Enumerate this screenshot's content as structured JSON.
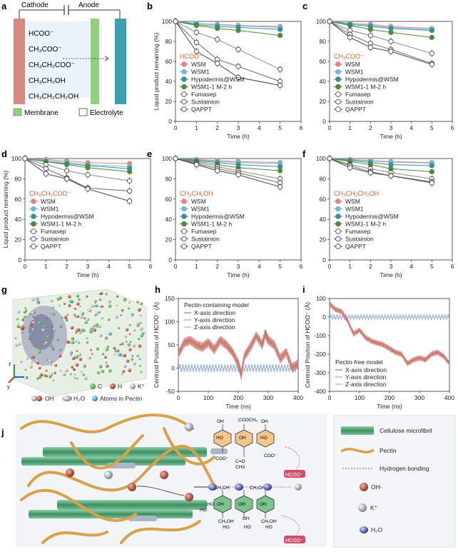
{
  "panel_letters": {
    "a": "a",
    "b": "b",
    "c": "c",
    "d": "d",
    "e": "e",
    "f": "f",
    "g": "g",
    "h": "h",
    "i": "i",
    "j": "j"
  },
  "colors": {
    "WSM": "#e2857e",
    "WSM1": "#6fb8d8",
    "Hypodermis@WSM": "#3a8f97",
    "WSM1-1 M-2 h": "#4e8a3b",
    "Fumasep": "#8a8a8a",
    "Sustainion": "#6a6a6a",
    "QAPPT": "#444444",
    "product_label": "#e0612a",
    "x_dir": "#cc7a72",
    "y_dir": "#9cb7d8",
    "z_dir": "#b8b8b8",
    "cathode": "#d98880",
    "anode": "#3aa1b0",
    "membrane": "#8fd27a",
    "cellulose": "#4f9e73",
    "pectin": "#d8a14a",
    "hbond": "#d0506a"
  },
  "panel_a": {
    "cathode_label": "Cathode",
    "anode_label": "Anode",
    "products": [
      "HCOO⁻",
      "CH₃COO⁻",
      "CH₃CH₂COO⁻",
      "CH₃CH₂OH",
      "CH₃CH₂CH₂OH"
    ],
    "legend": {
      "membrane": "Membrane",
      "electrolyte": "Electrolyte"
    }
  },
  "panel_g": {
    "legend": [
      "C",
      "H",
      "K⁺",
      "OH",
      "H₂O",
      "Atoms in Pectin"
    ],
    "axes": {
      "x": "x",
      "y": "y",
      "z": "z"
    }
  },
  "panel_j": {
    "chem_labels": [
      "OH",
      "COOCH₃",
      "OH",
      "HO",
      "OH",
      "HO",
      "COO⁻",
      "C=O",
      "CH3",
      "COO⁻",
      "HCOO⁻",
      "CH₂OH",
      "CH₂OH",
      "OH",
      "OH",
      "OH",
      "HO",
      "CH₂OH",
      "OH",
      "CH₂OH",
      "HCOO⁻",
      "HO",
      "HO",
      "HO",
      "HO"
    ],
    "legend": [
      "Cellulose microfibril",
      "Pectin",
      "Hydrogen bonding",
      "OH-",
      "K⁺",
      "H₂O"
    ]
  },
  "chart_data": [
    {
      "panel": "b",
      "type": "line",
      "product": "HCOO⁻",
      "xlabel": "Time (h)",
      "ylabel": "Liquid product remaining (%)",
      "xlim": [
        0,
        6
      ],
      "ylim": [
        0,
        100
      ],
      "x": [
        0,
        1,
        2,
        3,
        5
      ],
      "series": [
        {
          "name": "WSM",
          "values": [
            100,
            98,
            97,
            96,
            95
          ]
        },
        {
          "name": "WSM1",
          "values": [
            100,
            98,
            96.5,
            95.5,
            94
          ]
        },
        {
          "name": "Hypodermis@WSM",
          "values": [
            100,
            97,
            95,
            94,
            92
          ]
        },
        {
          "name": "WSM1-1 M-2 h",
          "values": [
            100,
            96,
            93,
            91,
            86
          ]
        },
        {
          "name": "Fumasep",
          "values": [
            100,
            89,
            82,
            72,
            52
          ]
        },
        {
          "name": "Sustainion",
          "values": [
            100,
            79,
            62,
            55,
            40
          ]
        },
        {
          "name": "QAPPT",
          "values": [
            100,
            70,
            58,
            44,
            36
          ]
        }
      ]
    },
    {
      "panel": "c",
      "type": "line",
      "product": "CH₃COO⁻",
      "xlabel": "Time (h)",
      "ylabel": "",
      "xlim": [
        0,
        6
      ],
      "ylim": [
        0,
        100
      ],
      "x": [
        0,
        1,
        2,
        3,
        5
      ],
      "series": [
        {
          "name": "WSM",
          "values": [
            100,
            98,
            97,
            95,
            93
          ]
        },
        {
          "name": "WSM1",
          "values": [
            100,
            98,
            96,
            94,
            92
          ]
        },
        {
          "name": "Hypodermis@WSM",
          "values": [
            100,
            97,
            95,
            93,
            91
          ]
        },
        {
          "name": "WSM1-1 M-2 h",
          "values": [
            100,
            96,
            92,
            89,
            84
          ]
        },
        {
          "name": "Fumasep",
          "values": [
            100,
            91,
            86,
            80,
            68
          ]
        },
        {
          "name": "Sustainion",
          "values": [
            100,
            87,
            78,
            72,
            58
          ]
        },
        {
          "name": "QAPPT",
          "values": [
            100,
            84,
            74,
            70,
            57
          ]
        }
      ]
    },
    {
      "panel": "d",
      "type": "line",
      "product": "CH₃CH₂COO⁻",
      "xlabel": "Time (h)",
      "ylabel": "Liquid product remaining (%)",
      "xlim": [
        0,
        6
      ],
      "ylim": [
        0,
        100
      ],
      "x": [
        0,
        1,
        2,
        3,
        5
      ],
      "series": [
        {
          "name": "WSM",
          "values": [
            100,
            99,
            97.5,
            96,
            95
          ]
        },
        {
          "name": "WSM1",
          "values": [
            100,
            98,
            96,
            94,
            92
          ]
        },
        {
          "name": "Hypodermis@WSM",
          "values": [
            100,
            97,
            95,
            93,
            90
          ]
        },
        {
          "name": "WSM1-1 M-2 h",
          "values": [
            100,
            97,
            94,
            91,
            87
          ]
        },
        {
          "name": "Fumasep",
          "values": [
            100,
            94,
            88,
            84,
            78
          ]
        },
        {
          "name": "Sustainion",
          "values": [
            100,
            90,
            81,
            71,
            68
          ]
        },
        {
          "name": "QAPPT",
          "values": [
            100,
            85,
            80,
            70,
            58
          ]
        }
      ]
    },
    {
      "panel": "e",
      "type": "line",
      "product": "CH₃CH₂OH",
      "xlabel": "Time (h)",
      "ylabel": "",
      "xlim": [
        0,
        6
      ],
      "ylim": [
        0,
        100
      ],
      "x": [
        0,
        1,
        2,
        3,
        5
      ],
      "series": [
        {
          "name": "WSM",
          "values": [
            100,
            99,
            98,
            97,
            96
          ]
        },
        {
          "name": "WSM1",
          "values": [
            100,
            98.5,
            97,
            96,
            95
          ]
        },
        {
          "name": "Hypodermis@WSM",
          "values": [
            100,
            98,
            96,
            94,
            92
          ]
        },
        {
          "name": "WSM1-1 M-2 h",
          "values": [
            100,
            97,
            94,
            91,
            88
          ]
        },
        {
          "name": "Fumasep",
          "values": [
            100,
            96,
            92,
            88,
            80
          ]
        },
        {
          "name": "Sustainion",
          "values": [
            100,
            95,
            90,
            86,
            76
          ]
        },
        {
          "name": "QAPPT",
          "values": [
            100,
            94,
            88,
            84,
            72
          ]
        }
      ]
    },
    {
      "panel": "f",
      "type": "line",
      "product": "CH₃CH₂CH₂OH",
      "xlabel": "Time (h)",
      "ylabel": "",
      "xlim": [
        0,
        6
      ],
      "ylim": [
        0,
        100
      ],
      "x": [
        0,
        1,
        2,
        3,
        5
      ],
      "series": [
        {
          "name": "WSM",
          "values": [
            100,
            99,
            98,
            97,
            96
          ]
        },
        {
          "name": "WSM1",
          "values": [
            100,
            98.5,
            97.5,
            96.5,
            95.5
          ]
        },
        {
          "name": "Hypodermis@WSM",
          "values": [
            100,
            98,
            96,
            94,
            93
          ]
        },
        {
          "name": "WSM1-1 M-2 h",
          "values": [
            100,
            97,
            94,
            90,
            87
          ]
        },
        {
          "name": "Fumasep",
          "values": [
            100,
            94,
            90,
            86,
            80
          ]
        },
        {
          "name": "Sustainion",
          "values": [
            100,
            93,
            87,
            83,
            77
          ]
        },
        {
          "name": "QAPPT",
          "values": [
            100,
            91,
            86,
            83,
            76
          ]
        }
      ]
    },
    {
      "panel": "h",
      "type": "line",
      "title": "Pectin-containing model",
      "xlabel": "Time (ns)",
      "ylabel": "Centroid Position of HCOO⁻ (Å)",
      "xlim": [
        0,
        400
      ],
      "ylim": [
        -50,
        150
      ],
      "xticks": [
        0,
        100,
        200,
        300,
        400
      ],
      "yticks": [
        -50,
        0,
        50,
        100,
        150
      ],
      "series": [
        {
          "name": "X-axis direction",
          "x": [
            0,
            20,
            40,
            60,
            80,
            100,
            120,
            140,
            160,
            180,
            200,
            210,
            220,
            240,
            260,
            280,
            290,
            300,
            320,
            340,
            360,
            380,
            400
          ],
          "values": [
            30,
            55,
            60,
            50,
            45,
            55,
            40,
            60,
            50,
            35,
            10,
            -15,
            25,
            45,
            70,
            50,
            75,
            60,
            50,
            20,
            35,
            0,
            10
          ]
        },
        {
          "name": "Y-axis direction",
          "x": [
            0,
            100,
            200,
            300,
            400
          ],
          "values": [
            0,
            0,
            0,
            0,
            0
          ]
        },
        {
          "name": "Z-axis direction",
          "x": [
            0,
            100,
            200,
            300,
            400
          ],
          "values": [
            0,
            0,
            0,
            0,
            0
          ]
        }
      ]
    },
    {
      "panel": "i",
      "type": "line",
      "title": "Pectin-free model",
      "xlabel": "Time (ns)",
      "ylabel": "Centroid Position of HCOO⁻ (Å)",
      "xlim": [
        0,
        400
      ],
      "ylim": [
        -400,
        100
      ],
      "xticks": [
        0,
        100,
        200,
        300,
        400
      ],
      "yticks": [
        -400,
        -300,
        -200,
        -100,
        0,
        100
      ],
      "series": [
        {
          "name": "X-axis direction",
          "x": [
            0,
            20,
            40,
            60,
            80,
            100,
            120,
            140,
            160,
            180,
            200,
            220,
            240,
            260,
            280,
            300,
            320,
            340,
            360,
            380,
            400
          ],
          "values": [
            70,
            40,
            30,
            -20,
            -90,
            -70,
            -110,
            -130,
            -140,
            -150,
            -170,
            -190,
            -200,
            -250,
            -230,
            -220,
            -230,
            -200,
            -190,
            -210,
            -250
          ]
        },
        {
          "name": "Y-axis direction",
          "x": [
            0,
            100,
            200,
            300,
            400
          ],
          "values": [
            0,
            0,
            0,
            0,
            0
          ]
        },
        {
          "name": "Z-axis direction",
          "x": [
            0,
            100,
            200,
            300,
            400
          ],
          "values": [
            0,
            0,
            0,
            0,
            0
          ]
        }
      ]
    }
  ]
}
